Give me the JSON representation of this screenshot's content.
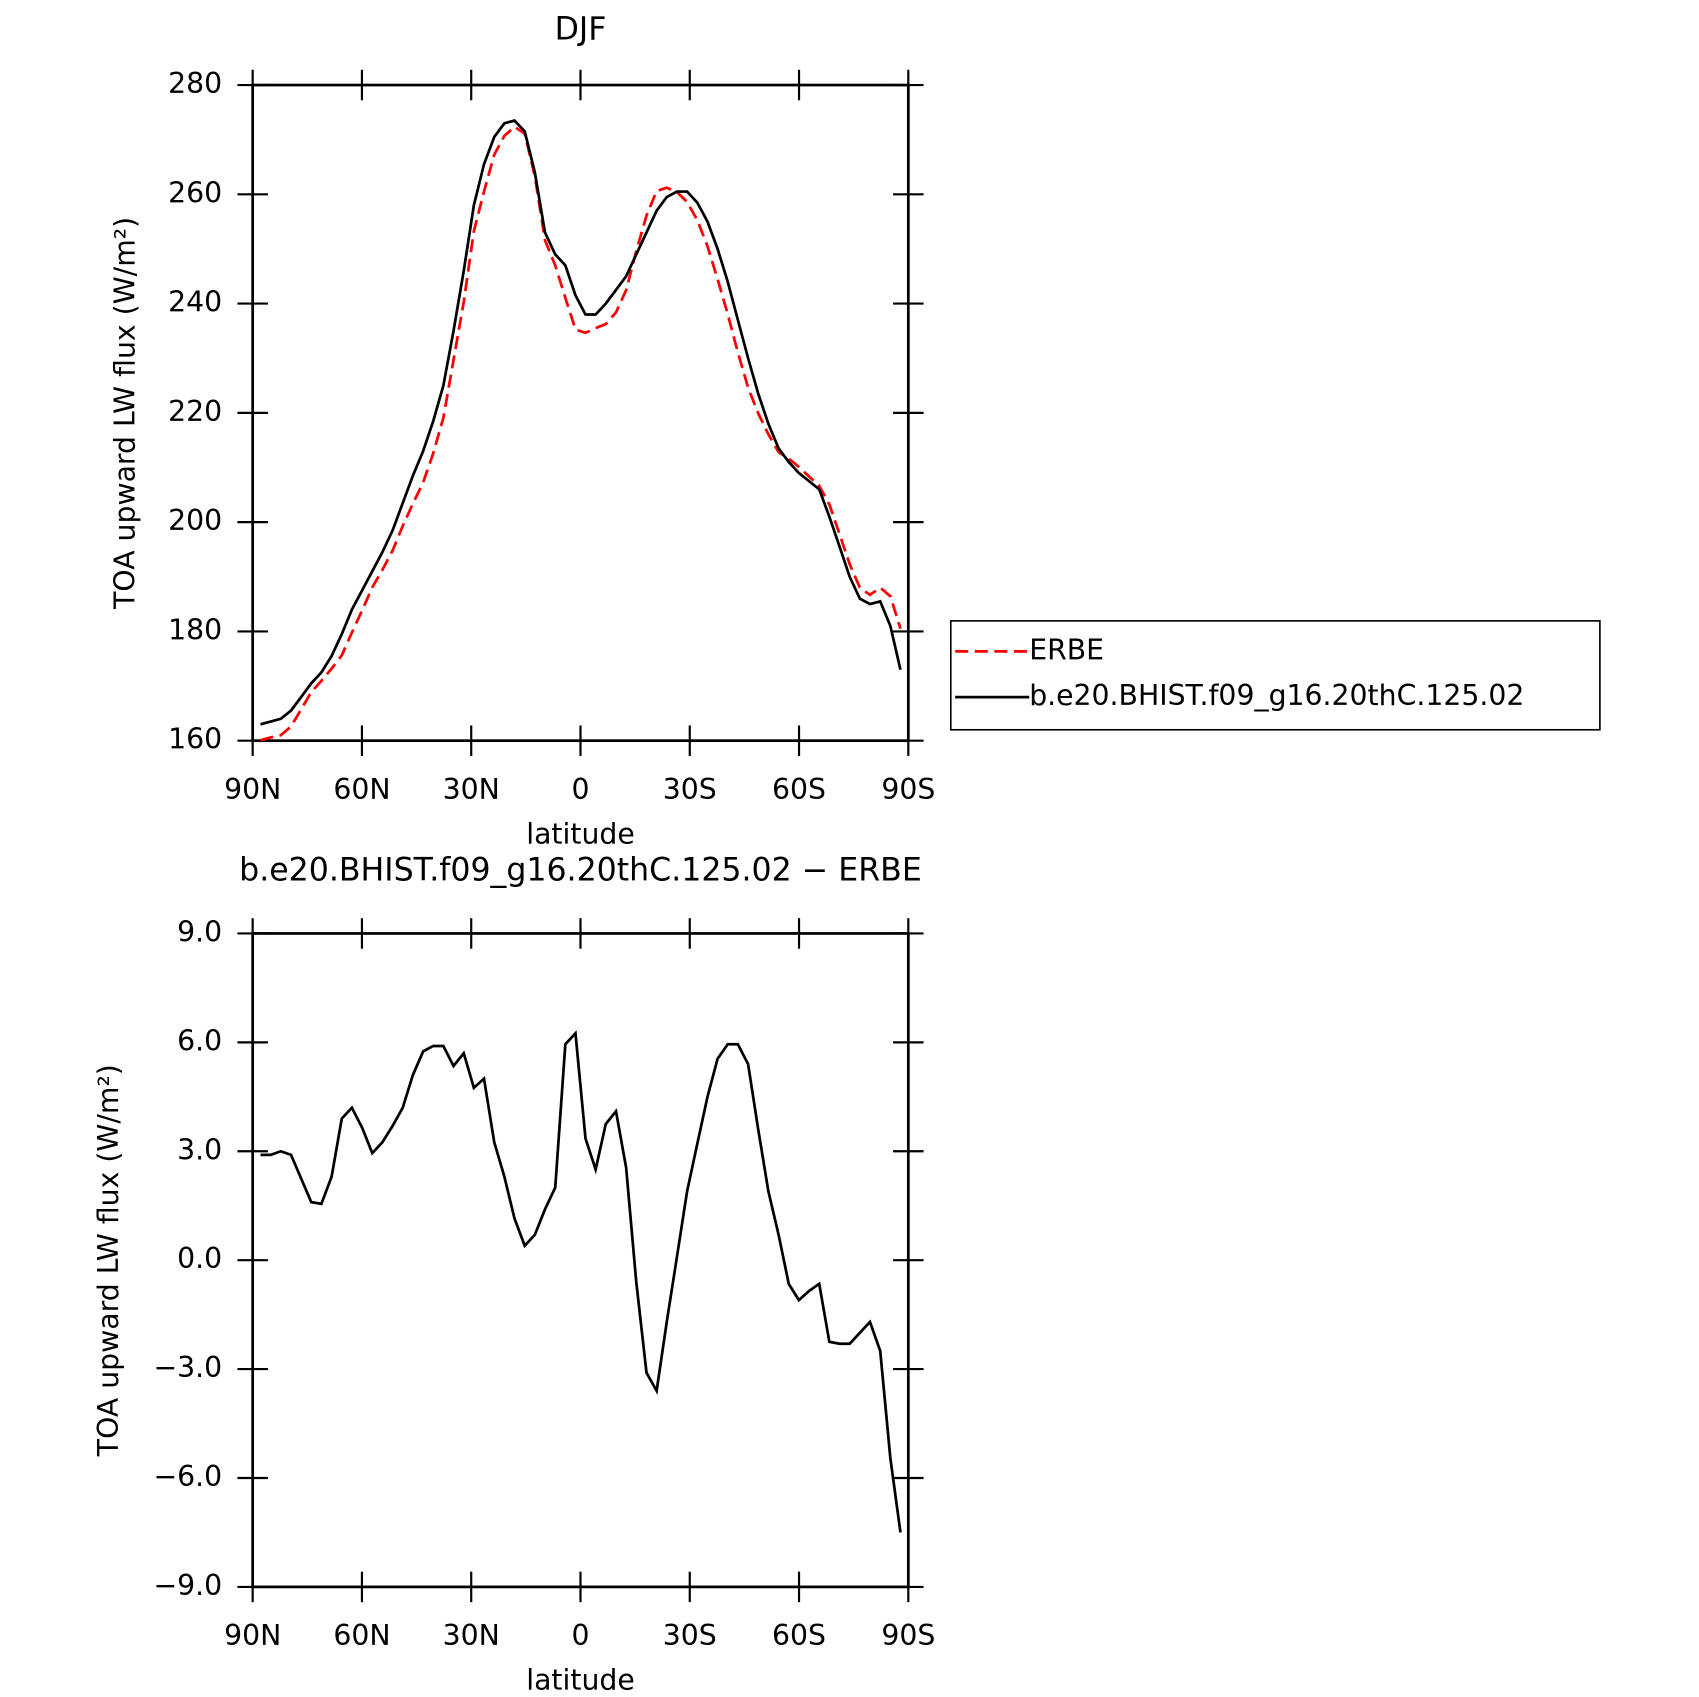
{
  "chart_data": [
    {
      "type": "line",
      "title": "DJF",
      "xlabel": "latitude",
      "ylabel": "TOA upward LW flux (W/m²)",
      "x": [
        87.86,
        85.07,
        82.28,
        79.49,
        76.7,
        73.91,
        71.12,
        68.33,
        65.54,
        62.75,
        59.96,
        57.17,
        54.38,
        51.59,
        48.8,
        46.01,
        43.22,
        40.43,
        37.64,
        34.85,
        32.06,
        29.27,
        26.48,
        23.69,
        20.9,
        18.11,
        15.32,
        12.53,
        9.74,
        6.95,
        4.16,
        1.37,
        -1.37,
        -4.16,
        -6.95,
        -9.74,
        -12.53,
        -15.32,
        -18.11,
        -20.9,
        -23.69,
        -26.48,
        -29.27,
        -32.06,
        -34.85,
        -37.64,
        -40.43,
        -43.22,
        -46.01,
        -48.8,
        -51.59,
        -54.38,
        -57.17,
        -59.96,
        -62.75,
        -65.54,
        -68.33,
        -71.12,
        -73.91,
        -76.7,
        -79.49,
        -82.28,
        -85.07,
        -87.86
      ],
      "series": [
        {
          "name": "ERBE",
          "color": "#ff0000",
          "dashed": true,
          "values": [
            160.1,
            160.6,
            161.0,
            162.6,
            165.75,
            168.9,
            170.95,
            173.2,
            175.6,
            179.8,
            183.85,
            188.05,
            191.25,
            194.8,
            199.3,
            203.4,
            207.25,
            212.6,
            219.1,
            229.65,
            240.3,
            253.25,
            260.5,
            267.25,
            270.7,
            272.35,
            271.1,
            263.3,
            251.6,
            247.0,
            241.05,
            235.25,
            234.65,
            235.5,
            236.25,
            238.4,
            242.45,
            249.6,
            256.1,
            260.6,
            261.2,
            260.4,
            258.6,
            255.3,
            250.5,
            244.45,
            238.05,
            231.05,
            224.6,
            219.9,
            216.1,
            212.8,
            211.65,
            210.1,
            208.35,
            206.65,
            203.25,
            197.8,
            192.3,
            188.0,
            186.7,
            188.0,
            186.45,
            180.5
          ]
        },
        {
          "name": "b.e20.BHIST.f09_g16.20thC.125.02",
          "color": "#000000",
          "dashed": false,
          "values": [
            163.0,
            163.5,
            164.0,
            165.5,
            168,
            170.5,
            172.5,
            175.5,
            179.5,
            184,
            187.5,
            191,
            194.5,
            198.5,
            203.5,
            208.5,
            213,
            218.5,
            225,
            235,
            246,
            258,
            265.5,
            270.5,
            273,
            273.5,
            271.5,
            264,
            253,
            249,
            247,
            241.5,
            238,
            238,
            240,
            242.5,
            245,
            249,
            253,
            257,
            259.5,
            260.5,
            260.5,
            258.5,
            255,
            250,
            244,
            237,
            230,
            223.5,
            218,
            213.5,
            211,
            209,
            207.5,
            206,
            201,
            195.5,
            190,
            186,
            185,
            185.5,
            181,
            173
          ]
        }
      ],
      "xlim": [
        90,
        -90
      ],
      "xticks": [
        {
          "value": 90,
          "label": "90N"
        },
        {
          "value": 60,
          "label": "60N"
        },
        {
          "value": 30,
          "label": "30N"
        },
        0,
        {
          "value": -30,
          "label": "30S"
        },
        {
          "value": -60,
          "label": "60S"
        },
        {
          "value": -90,
          "label": "90S"
        }
      ],
      "ylim": [
        160,
        280
      ],
      "yticks": [
        160,
        180,
        200,
        220,
        240,
        260,
        280
      ],
      "legend": "right"
    },
    {
      "type": "line",
      "title": "b.e20.BHIST.f09_g16.20thC.125.02 − ERBE",
      "xlabel": "latitude",
      "ylabel": "TOA upward LW flux (W/m²)",
      "x": [
        87.86,
        85.07,
        82.28,
        79.49,
        76.7,
        73.91,
        71.12,
        68.33,
        65.54,
        62.75,
        59.96,
        57.17,
        54.38,
        51.59,
        48.8,
        46.01,
        43.22,
        40.43,
        37.64,
        34.85,
        32.06,
        29.27,
        26.48,
        23.69,
        20.9,
        18.11,
        15.32,
        12.53,
        9.74,
        6.95,
        4.16,
        1.37,
        -1.37,
        -4.16,
        -6.95,
        -9.74,
        -12.53,
        -15.32,
        -18.11,
        -20.9,
        -23.69,
        -26.48,
        -29.27,
        -32.06,
        -34.85,
        -37.64,
        -40.43,
        -43.22,
        -46.01,
        -48.8,
        -51.59,
        -54.38,
        -57.17,
        -59.96,
        -62.75,
        -65.54,
        -68.33,
        -71.12,
        -73.91,
        -76.7,
        -79.49,
        -82.28,
        -85.07,
        -87.86
      ],
      "series": [
        {
          "color": "#000000",
          "dashed": false,
          "values": [
            2.9,
            2.9,
            3.0,
            2.9,
            2.25,
            1.6,
            1.55,
            2.3,
            3.9,
            4.2,
            3.65,
            2.95,
            3.25,
            3.7,
            4.2,
            5.1,
            5.75,
            5.9,
            5.9,
            5.35,
            5.7,
            4.75,
            5.0,
            3.25,
            2.3,
            1.15,
            0.4,
            0.7,
            1.4,
            2.0,
            5.95,
            6.25,
            3.35,
            2.5,
            3.75,
            4.1,
            2.55,
            -0.6,
            -3.1,
            -3.6,
            -1.7,
            0.1,
            1.9,
            3.2,
            4.5,
            5.55,
            5.95,
            5.95,
            5.4,
            3.6,
            1.9,
            0.7,
            -0.65,
            -1.1,
            -0.85,
            -0.65,
            -2.25,
            -2.3,
            -2.3,
            -2.0,
            -1.7,
            -2.5,
            -5.45,
            -7.5
          ]
        }
      ],
      "xlim": [
        90,
        -90
      ],
      "xticks": [
        {
          "value": 90,
          "label": "90N"
        },
        {
          "value": 60,
          "label": "60N"
        },
        {
          "value": 30,
          "label": "30N"
        },
        0,
        {
          "value": -30,
          "label": "30S"
        },
        {
          "value": -60,
          "label": "60S"
        },
        {
          "value": -90,
          "label": "90S"
        }
      ],
      "ylim": [
        -9,
        9
      ],
      "yticks": [
        {
          "value": -9,
          "label": "−9.0"
        },
        {
          "value": -6,
          "label": "−6.0"
        },
        {
          "value": -3,
          "label": "−3.0"
        },
        {
          "value": 0,
          "label": "0.0"
        },
        {
          "value": 3,
          "label": "3.0"
        },
        {
          "value": 6,
          "label": "6.0"
        },
        {
          "value": 9,
          "label": "9.0"
        }
      ]
    }
  ]
}
